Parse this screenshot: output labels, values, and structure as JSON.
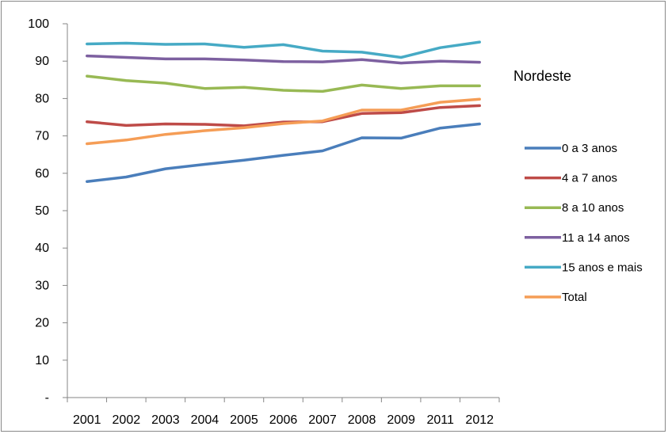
{
  "chart_data": {
    "type": "line",
    "title": "Nordeste",
    "xlabel": "",
    "ylabel": "",
    "categories": [
      "2001",
      "2002",
      "2003",
      "2004",
      "2005",
      "2006",
      "2007",
      "2008",
      "2009",
      "2011",
      "2012"
    ],
    "yticks": [
      "-",
      "10",
      "20",
      "30",
      "40",
      "50",
      "60",
      "70",
      "80",
      "90",
      "100"
    ],
    "ylim": [
      0,
      100
    ],
    "grid": false,
    "legend_position": "right",
    "series": [
      {
        "name": "0 a 3 anos",
        "color": "#4a7ebb",
        "values": [
          57.8,
          59.0,
          61.2,
          62.4,
          63.5,
          64.8,
          66.0,
          69.5,
          69.4,
          72.1,
          73.2
        ]
      },
      {
        "name": "4 a 7 anos",
        "color": "#be4b48",
        "values": [
          73.8,
          72.8,
          73.2,
          73.1,
          72.7,
          73.7,
          73.8,
          76.0,
          76.2,
          77.6,
          78.1
        ]
      },
      {
        "name": "8 a 10 anos",
        "color": "#98b954",
        "values": [
          86.0,
          84.8,
          84.1,
          82.7,
          83.0,
          82.2,
          81.9,
          83.6,
          82.7,
          83.4,
          83.4
        ]
      },
      {
        "name": "11 a 14 anos",
        "color": "#7d60a0",
        "values": [
          91.4,
          91.0,
          90.6,
          90.6,
          90.3,
          89.9,
          89.8,
          90.4,
          89.5,
          90.0,
          89.7
        ]
      },
      {
        "name": "15 anos e mais",
        "color": "#46aac5",
        "values": [
          94.6,
          94.8,
          94.5,
          94.6,
          93.7,
          94.4,
          92.7,
          92.4,
          91.0,
          93.6,
          95.1
        ]
      },
      {
        "name": "Total",
        "color": "#f59d56",
        "values": [
          67.9,
          68.9,
          70.4,
          71.4,
          72.2,
          73.3,
          74.0,
          76.9,
          76.9,
          79.0,
          79.8
        ]
      }
    ]
  }
}
